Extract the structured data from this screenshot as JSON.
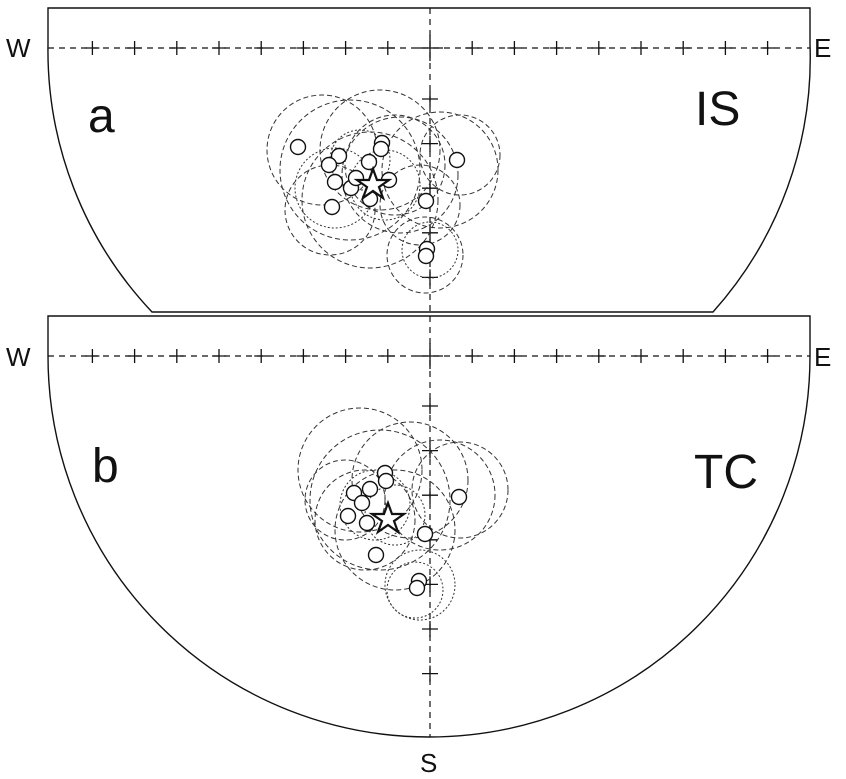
{
  "figure": {
    "compass": {
      "west": "W",
      "east": "E",
      "south": "S"
    },
    "panels": [
      {
        "id": "a",
        "letter": "a",
        "code": "IS"
      },
      {
        "id": "b",
        "letter": "b",
        "code": "TC"
      }
    ]
  }
}
